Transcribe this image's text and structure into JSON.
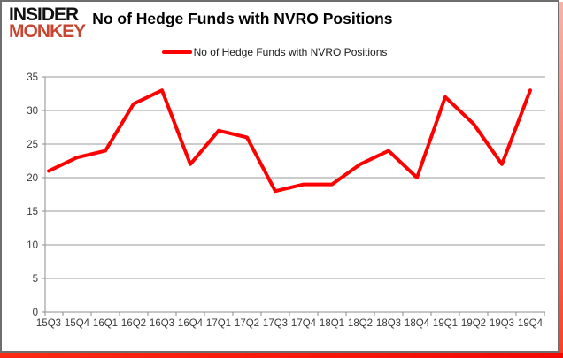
{
  "brand": {
    "line1": "INSIDER",
    "line2": "MONKEY",
    "line2_color": "#c8452f"
  },
  "title": "No of Hedge Funds with NVRO Positions",
  "legend": {
    "label": "No of Hedge Funds with NVRO Positions",
    "line_color": "#ff0000"
  },
  "chart_data": {
    "type": "line",
    "title": "No of Hedge Funds with NVRO Positions",
    "categories": [
      "15Q3",
      "15Q4",
      "16Q1",
      "16Q2",
      "16Q3",
      "16Q4",
      "17Q1",
      "17Q2",
      "17Q3",
      "17Q4",
      "18Q1",
      "18Q2",
      "18Q3",
      "18Q4",
      "19Q1",
      "19Q2",
      "19Q3",
      "19Q4"
    ],
    "series": [
      {
        "name": "No of Hedge Funds with NVRO Positions",
        "color": "#ff0000",
        "values": [
          21,
          23,
          24,
          31,
          33,
          22,
          27,
          26,
          18,
          19,
          19,
          22,
          24,
          20,
          32,
          28,
          22,
          33
        ]
      }
    ],
    "xlabel": "",
    "ylabel": "",
    "ylim": [
      0,
      35
    ],
    "yticks": [
      0,
      5,
      10,
      15,
      20,
      25,
      30,
      35
    ],
    "grid": true,
    "legend_position": "top"
  },
  "colors": {
    "grid": "#9a9a9a",
    "axis": "#8c8c8c",
    "tick_text": "#3a3a3a",
    "shadow_red": "#f40800"
  }
}
